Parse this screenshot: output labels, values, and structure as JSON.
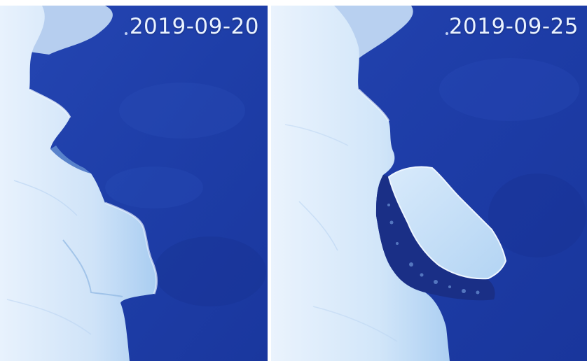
{
  "panels": [
    {
      "date": "2019-09-20"
    },
    {
      "date": "2019-09-25"
    }
  ],
  "colors": {
    "ocean": "#1f3fae",
    "ocean_deep": "#18339a",
    "ice": "#dbeafb",
    "ice_shadow": "#9cc4ec",
    "separator": "#ffffff"
  }
}
